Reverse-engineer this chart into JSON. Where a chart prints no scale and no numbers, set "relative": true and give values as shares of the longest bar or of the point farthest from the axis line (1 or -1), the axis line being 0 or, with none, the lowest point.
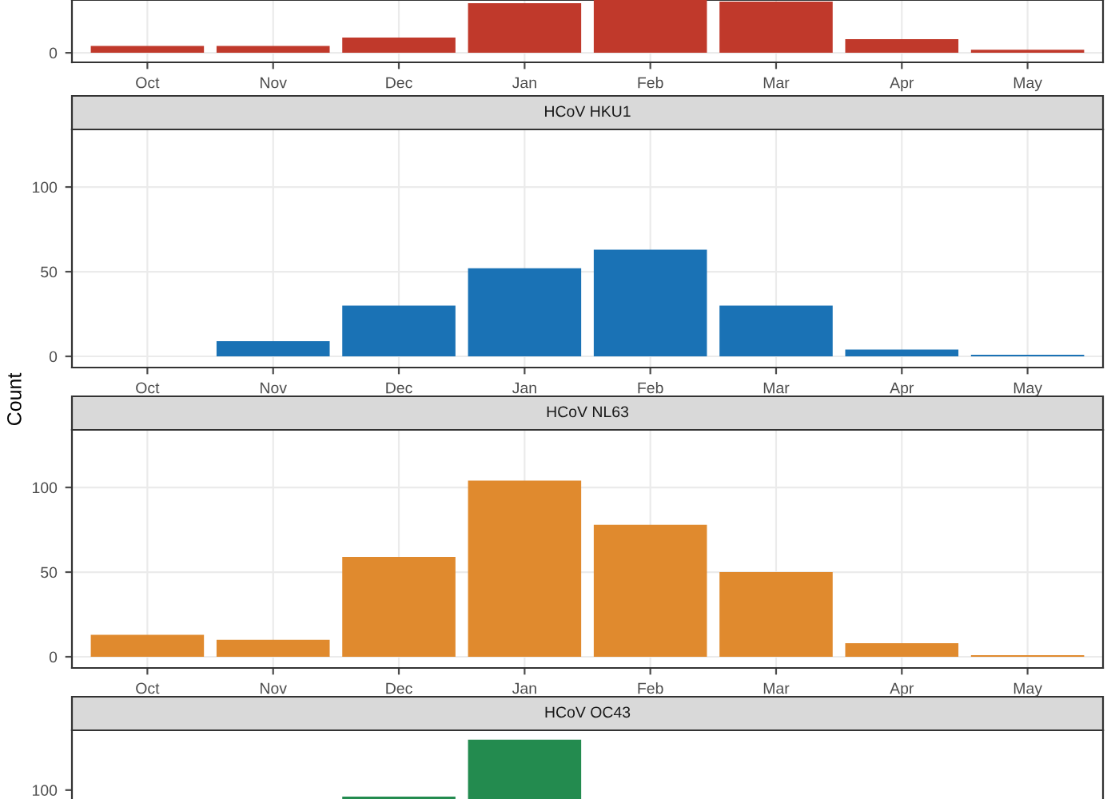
{
  "chart_data": [
    {
      "type": "bar",
      "categories": [
        "Oct",
        "Nov",
        "Dec",
        "Jan",
        "Feb",
        "Mar",
        "Apr",
        "May"
      ],
      "values": [
        0.13,
        0.13,
        0.29,
        0.94,
        1,
        0.97,
        0.26,
        0.06
      ],
      "color": "#c0392b",
      "relative": true,
      "annotations": [
        "0"
      ],
      "grid": true
    },
    {
      "type": "bar",
      "title": "HCoV HKU1",
      "ylabel": "Count",
      "categories": [
        "Oct",
        "Nov",
        "Dec",
        "Jan",
        "Feb",
        "Mar",
        "Apr",
        "May"
      ],
      "values": [
        0,
        9,
        30,
        52,
        63,
        30,
        4,
        1
      ],
      "color": "#1a72b5",
      "ylim": [
        -6.6,
        134
      ],
      "yticks": [
        0,
        50,
        100
      ],
      "grid": true
    },
    {
      "type": "bar",
      "title": "HCoV NL63",
      "categories": [
        "Oct",
        "Nov",
        "Dec",
        "Jan",
        "Feb",
        "Mar",
        "Apr",
        "May"
      ],
      "values": [
        13,
        10,
        59,
        104,
        78,
        50,
        8,
        1
      ],
      "color": "#e08a2e",
      "ylim": [
        -6.6,
        134
      ],
      "yticks": [
        0,
        50,
        100
      ],
      "grid": true
    },
    {
      "type": "bar",
      "title": "HCoV OC43",
      "categories": [
        null,
        null,
        null,
        null,
        null,
        null,
        null,
        null
      ],
      "values": [
        null,
        null,
        0.74,
        1,
        null,
        null,
        null,
        null
      ],
      "color": "#238b4f",
      "relative": true,
      "annotations": [
        "100"
      ],
      "tick_labels": "y"
    }
  ]
}
